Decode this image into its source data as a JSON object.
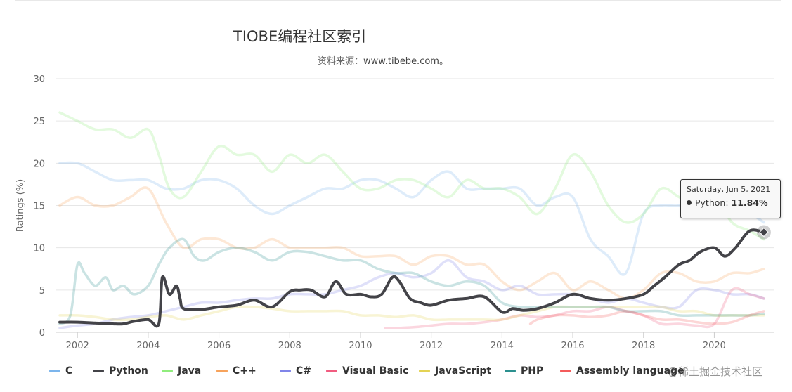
{
  "title": "TIOBE编程社区索引",
  "subtitle_prefix": "资料来源：",
  "subtitle_url": "www.tibebe.com。",
  "watermark": "@稀土掘金技术社区",
  "chart_data": {
    "type": "line",
    "title": "TIOBE编程社区索引",
    "subtitle": "资料来源：www.tibebe.com。",
    "xlabel": "",
    "ylabel": "Ratings (%)",
    "xlim": [
      2001.4,
      2021.7
    ],
    "ylim": [
      0,
      30
    ],
    "y_ticks": [
      0,
      5,
      10,
      15,
      20,
      25,
      30
    ],
    "x_ticks": [
      2002,
      2004,
      2006,
      2008,
      2010,
      2012,
      2014,
      2016,
      2018,
      2020
    ],
    "grid": true,
    "legend_position": "bottom",
    "highlighted_series": "Python",
    "series": [
      {
        "name": "C",
        "color": "#7cb5ec",
        "x": [
          2001.5,
          2002,
          2002.5,
          2003,
          2003.5,
          2004,
          2004.5,
          2005,
          2005.5,
          2006,
          2006.5,
          2007,
          2007.5,
          2008,
          2008.5,
          2009,
          2009.5,
          2010,
          2010.5,
          2011,
          2011.5,
          2012,
          2012.5,
          2013,
          2013.5,
          2014,
          2014.5,
          2015,
          2015.5,
          2016,
          2016.5,
          2017,
          2017.5,
          2018,
          2018.5,
          2019,
          2019.5,
          2020,
          2020.5,
          2021,
          2021.4
        ],
        "values": [
          20,
          20,
          19,
          18,
          18,
          18,
          17,
          17,
          18,
          18,
          17,
          15,
          14,
          15,
          16,
          17,
          17,
          18,
          18,
          17,
          16,
          18,
          19,
          17,
          17,
          17,
          17,
          15,
          16,
          16,
          11,
          9,
          7,
          14,
          15,
          15,
          16,
          17,
          14,
          14,
          13
        ]
      },
      {
        "name": "Python",
        "color": "#434348",
        "x": [
          2001.5,
          2002,
          2002.5,
          2003,
          2003.3,
          2003.6,
          2004,
          2004.3,
          2004.4,
          2004.6,
          2004.8,
          2004.9,
          2005,
          2005.5,
          2006,
          2006.5,
          2007,
          2007.5,
          2008,
          2008.3,
          2008.6,
          2009,
          2009.3,
          2009.6,
          2010,
          2010.3,
          2010.6,
          2010.9,
          2011.1,
          2011.4,
          2011.7,
          2012,
          2012.5,
          2013,
          2013.5,
          2014,
          2014.3,
          2014.6,
          2015,
          2015.5,
          2016,
          2016.5,
          2017,
          2017.5,
          2018,
          2018.3,
          2018.6,
          2019,
          2019.3,
          2019.6,
          2020,
          2020.3,
          2020.6,
          2021,
          2021.4
        ],
        "values": [
          1.2,
          1.2,
          1.1,
          1.0,
          1.0,
          1.3,
          1.5,
          1.0,
          6.5,
          4.5,
          5.5,
          4.0,
          2.8,
          2.7,
          3.0,
          3.2,
          3.8,
          3.0,
          4.8,
          5.0,
          5.0,
          4.2,
          6.0,
          4.5,
          4.5,
          4.2,
          4.5,
          6.5,
          6.0,
          4.0,
          3.5,
          3.2,
          3.8,
          4.0,
          4.2,
          2.4,
          2.8,
          2.6,
          2.8,
          3.5,
          4.5,
          4.0,
          3.8,
          4.0,
          4.5,
          5.5,
          6.5,
          8.0,
          8.5,
          9.5,
          10.0,
          9.0,
          10.0,
          12.0,
          11.84
        ]
      },
      {
        "name": "Java",
        "color": "#90ed7d",
        "x": [
          2001.5,
          2002,
          2002.5,
          2003,
          2003.5,
          2004,
          2004.3,
          2004.6,
          2005,
          2005.5,
          2006,
          2006.5,
          2007,
          2007.5,
          2008,
          2008.5,
          2009,
          2009.5,
          2010,
          2010.5,
          2011,
          2011.5,
          2012,
          2012.5,
          2013,
          2013.5,
          2014,
          2014.5,
          2015,
          2015.5,
          2016,
          2016.5,
          2017,
          2017.5,
          2018,
          2018.5,
          2019,
          2019.5,
          2020,
          2020.5,
          2021,
          2021.4
        ],
        "values": [
          26,
          25,
          24,
          24,
          23,
          24,
          21,
          17,
          16,
          19,
          22,
          21,
          21,
          19,
          21,
          20,
          21,
          19,
          17,
          17,
          18,
          18,
          17,
          16,
          18,
          17,
          17,
          16,
          14,
          17,
          21,
          19,
          15,
          13,
          14,
          17,
          16,
          15,
          16,
          13,
          12,
          11
        ]
      },
      {
        "name": "C++",
        "color": "#f7a35c",
        "x": [
          2001.5,
          2002,
          2002.5,
          2003,
          2003.5,
          2004,
          2004.5,
          2005,
          2005.5,
          2006,
          2006.5,
          2007,
          2007.5,
          2008,
          2008.5,
          2009,
          2009.5,
          2010,
          2010.5,
          2011,
          2011.5,
          2012,
          2012.5,
          2013,
          2013.5,
          2014,
          2014.5,
          2015,
          2015.5,
          2016,
          2016.5,
          2017,
          2017.5,
          2018,
          2018.5,
          2019,
          2019.5,
          2020,
          2020.5,
          2021,
          2021.4
        ],
        "values": [
          15,
          16,
          15,
          15,
          16,
          17,
          13,
          10,
          11,
          11,
          10,
          10,
          11,
          10,
          10,
          10,
          10,
          9,
          9,
          9,
          8,
          9,
          9,
          8,
          8,
          6,
          5,
          6,
          7,
          5,
          6,
          5,
          4,
          5,
          7,
          7,
          6,
          6,
          7,
          7,
          7.5
        ]
      },
      {
        "name": "C#",
        "color": "#8085e9",
        "x": [
          2001.5,
          2002,
          2002.5,
          2003,
          2003.5,
          2004,
          2004.5,
          2005,
          2005.5,
          2006,
          2006.5,
          2007,
          2007.5,
          2008,
          2008.5,
          2009,
          2009.5,
          2010,
          2010.5,
          2011,
          2011.5,
          2012,
          2012.5,
          2013,
          2013.5,
          2014,
          2014.5,
          2015,
          2015.5,
          2016,
          2016.5,
          2017,
          2017.5,
          2018,
          2018.5,
          2019,
          2019.5,
          2020,
          2020.5,
          2021,
          2021.4
        ],
        "values": [
          0.5,
          0.8,
          1.0,
          1.5,
          1.8,
          2.0,
          2.5,
          3.0,
          3.5,
          3.5,
          3.8,
          4.0,
          4.0,
          4.5,
          4.5,
          4.5,
          5.0,
          5.5,
          6.5,
          7.0,
          6.5,
          7.0,
          8.5,
          6.5,
          6.0,
          5.0,
          5.5,
          4.5,
          4.5,
          4.5,
          4.0,
          3.5,
          4.0,
          3.5,
          3.0,
          3.0,
          5.0,
          5.0,
          4.5,
          4.5,
          4.0
        ]
      },
      {
        "name": "Visual Basic",
        "color": "#f15c80",
        "x": [
          2010.7,
          2011,
          2011.5,
          2012,
          2012.5,
          2013,
          2013.5,
          2014,
          2014.5,
          2015,
          2015.5,
          2016,
          2016.5,
          2017,
          2017.5,
          2018,
          2018.5,
          2019,
          2019.5,
          2020,
          2020.5,
          2021,
          2021.4
        ],
        "values": [
          0.5,
          0.5,
          0.6,
          0.8,
          1.0,
          1.0,
          1.2,
          1.5,
          2.0,
          1.8,
          2.0,
          2.5,
          2.5,
          3.0,
          2.5,
          2.0,
          1.0,
          1.0,
          0.8,
          1.0,
          5.0,
          4.5,
          4.0
        ]
      },
      {
        "name": "JavaScript",
        "color": "#e4d354",
        "x": [
          2001.5,
          2002,
          2002.5,
          2003,
          2003.5,
          2004,
          2004.5,
          2005,
          2005.5,
          2006,
          2006.5,
          2007,
          2007.5,
          2008,
          2008.5,
          2009,
          2009.5,
          2010,
          2010.5,
          2011,
          2011.5,
          2012,
          2012.5,
          2013,
          2013.5,
          2014,
          2014.5,
          2015,
          2015.5,
          2016,
          2016.5,
          2017,
          2017.5,
          2018,
          2018.5,
          2019,
          2019.5,
          2020,
          2020.5,
          2021,
          2021.4
        ],
        "values": [
          2.0,
          2.0,
          1.8,
          1.5,
          1.5,
          1.8,
          2.0,
          1.5,
          2.0,
          2.5,
          3.0,
          3.0,
          2.8,
          2.5,
          2.5,
          2.5,
          2.5,
          2.0,
          2.0,
          1.8,
          2.0,
          1.5,
          1.5,
          1.5,
          1.5,
          1.5,
          2.0,
          2.5,
          3.0,
          3.0,
          3.0,
          3.0,
          3.0,
          3.0,
          3.0,
          2.5,
          2.5,
          2.0,
          2.0,
          2.0,
          2.0
        ]
      },
      {
        "name": "PHP",
        "color": "#2b908f",
        "x": [
          2001.5,
          2001.8,
          2002,
          2002.2,
          2002.5,
          2002.8,
          2003,
          2003.3,
          2003.6,
          2004,
          2004.3,
          2004.6,
          2005,
          2005.3,
          2005.6,
          2006,
          2006.5,
          2007,
          2007.5,
          2008,
          2008.5,
          2009,
          2009.5,
          2010,
          2010.5,
          2011,
          2011.5,
          2012,
          2012.5,
          2013,
          2013.5,
          2014,
          2014.5,
          2015,
          2015.5,
          2016,
          2016.5,
          2017,
          2017.5,
          2018,
          2018.5,
          2019,
          2019.5,
          2020,
          2020.5,
          2021,
          2021.4
        ],
        "values": [
          1.0,
          2.0,
          8.0,
          7.0,
          5.5,
          6.5,
          5.0,
          5.5,
          4.5,
          5.5,
          8.0,
          10.0,
          11.0,
          9.0,
          8.5,
          9.5,
          10.0,
          9.5,
          8.5,
          9.5,
          9.5,
          9.0,
          8.5,
          8.5,
          7.5,
          7.0,
          7.0,
          6.0,
          5.5,
          6.0,
          5.5,
          3.5,
          3.0,
          3.0,
          3.0,
          3.0,
          3.0,
          3.0,
          2.5,
          2.5,
          2.5,
          2.0,
          2.0,
          2.0,
          2.0,
          2.0,
          2.2
        ]
      },
      {
        "name": "Assembly language",
        "color": "#f45b5b",
        "x": [
          2014.8,
          2015,
          2015.5,
          2016,
          2016.5,
          2017,
          2017.5,
          2018,
          2018.5,
          2019,
          2019.5,
          2020,
          2020.5,
          2021,
          2021.4
        ],
        "values": [
          1.0,
          1.5,
          2.0,
          2.0,
          1.8,
          2.0,
          2.5,
          2.0,
          1.5,
          1.5,
          1.2,
          1.0,
          1.2,
          2.0,
          2.5
        ]
      }
    ],
    "tooltip": {
      "date": "Saturday, Jun 5, 2021",
      "series": "Python",
      "value": "11.84%"
    }
  }
}
